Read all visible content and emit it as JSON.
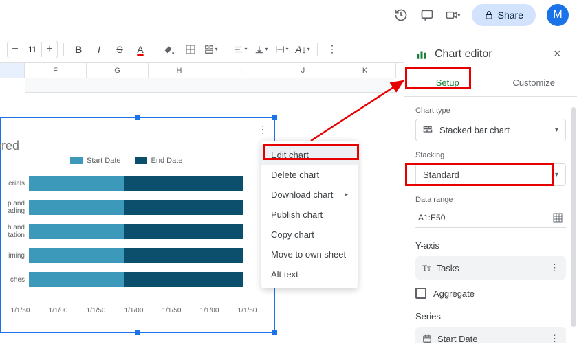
{
  "topbar": {
    "share_label": "Share",
    "avatar_letter": "M"
  },
  "toolbar": {
    "fontsize": "11"
  },
  "columns": [
    "F",
    "G",
    "H",
    "I",
    "J",
    "K"
  ],
  "chart": {
    "title_fragment": "ored",
    "legend": [
      {
        "label": "Start Date",
        "color": "#3d99b9"
      },
      {
        "label": "End Date",
        "color": "#0b4f6c"
      }
    ],
    "bars": [
      {
        "label": "erials",
        "seg1": 0.4,
        "seg2": 0.5,
        "c1": "#3d99b9",
        "c2": "#0b4f6c"
      },
      {
        "label": "p and\nading",
        "seg1": 0.4,
        "seg2": 0.5,
        "c1": "#3d99b9",
        "c2": "#0b4f6c"
      },
      {
        "label": "h and\ntation",
        "seg1": 0.4,
        "seg2": 0.5,
        "c1": "#3d99b9",
        "c2": "#0b4f6c"
      },
      {
        "label": "iming",
        "seg1": 0.4,
        "seg2": 0.5,
        "c1": "#3d99b9",
        "c2": "#0b4f6c"
      },
      {
        "label": "ches",
        "seg1": 0.4,
        "seg2": 0.5,
        "c1": "#3d99b9",
        "c2": "#0b4f6c"
      }
    ],
    "xaxis": [
      "1/1/50",
      "1/1/00",
      "1/1/50",
      "1/1/00",
      "1/1/50",
      "1/1/00",
      "1/1/50"
    ]
  },
  "context_menu": {
    "items": [
      {
        "label": "Edit chart",
        "active": true
      },
      {
        "label": "Delete chart"
      },
      {
        "label": "Download chart",
        "submenu": true
      },
      {
        "label": "Publish chart"
      },
      {
        "label": "Copy chart"
      },
      {
        "label": "Move to own sheet"
      },
      {
        "label": "Alt text"
      }
    ]
  },
  "editor": {
    "title": "Chart editor",
    "tabs": {
      "setup": "Setup",
      "customize": "Customize"
    },
    "chart_type_label": "Chart type",
    "chart_type_value": "Stacked bar chart",
    "stacking_label": "Stacking",
    "stacking_value": "Standard",
    "data_range_label": "Data range",
    "data_range_value": "A1:E50",
    "yaxis_label": "Y-axis",
    "yaxis_value": "Tasks",
    "aggregate_label": "Aggregate",
    "series_label": "Series",
    "series_value": "Start Date"
  },
  "colors": {
    "highlight_red": "#e60000",
    "blue_selection": "#1a73e8",
    "green_active": "#188038"
  }
}
